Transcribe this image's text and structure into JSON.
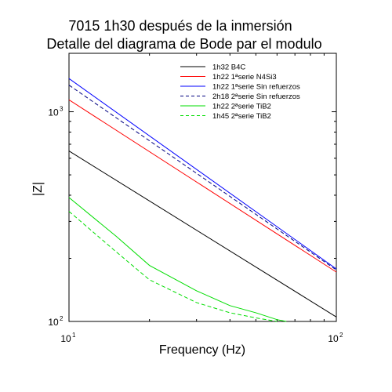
{
  "chart_data": {
    "type": "line",
    "title_line1": "7015 1h30 después de la inmersión",
    "title_line2": "Detalle del diagrama de Bode par el modulo",
    "xlabel": "Frequency (Hz)",
    "ylabel": "|Z|",
    "x_scale": "log",
    "y_scale": "log",
    "xlim": [
      10,
      100
    ],
    "ylim": [
      100,
      1900
    ],
    "x_ticks": [
      {
        "base": "10",
        "exp": "1"
      },
      {
        "base": "10",
        "exp": "2"
      }
    ],
    "y_ticks": [
      {
        "base": "10",
        "exp": "2",
        "value": 100
      },
      {
        "base": "10",
        "exp": "3",
        "value": 1000
      }
    ],
    "grid": false,
    "legend_position": "top-right",
    "series": [
      {
        "name": "1h32 B4C",
        "color": "#000000",
        "dash": "solid",
        "x": [
          10,
          100
        ],
        "y": [
          650,
          105
        ]
      },
      {
        "name": "1h22 1ªserie N4Si3",
        "color": "#ff0000",
        "dash": "solid",
        "x": [
          10,
          100
        ],
        "y": [
          1140,
          172
        ]
      },
      {
        "name": "1h22 1ªserie Sin refuerzos",
        "color": "#0000ff",
        "dash": "solid",
        "x": [
          10,
          100
        ],
        "y": [
          1440,
          178
        ]
      },
      {
        "name": "2h18 2ªserie Sin refuerzos",
        "color": "#000080",
        "dash": "dashed",
        "x": [
          10,
          100
        ],
        "y": [
          1340,
          176
        ]
      },
      {
        "name": "1h22 2ªserie TiB2",
        "color": "#00dd00",
        "dash": "solid",
        "x": [
          10,
          15,
          20,
          30,
          40,
          50,
          60,
          65
        ],
        "y": [
          390,
          255,
          185,
          140,
          119,
          110,
          102,
          100
        ]
      },
      {
        "name": "1h45 2ªserie TiB2",
        "color": "#00dd00",
        "dash": "dashed",
        "x": [
          10,
          15,
          20,
          30,
          40,
          50,
          60
        ],
        "y": [
          335,
          215,
          158,
          123,
          110,
          104,
          100
        ]
      }
    ]
  }
}
